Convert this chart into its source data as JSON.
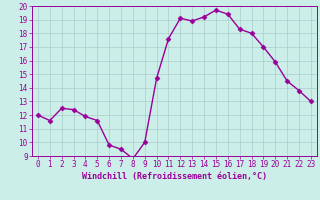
{
  "x": [
    0,
    1,
    2,
    3,
    4,
    5,
    6,
    7,
    8,
    9,
    10,
    11,
    12,
    13,
    14,
    15,
    16,
    17,
    18,
    19,
    20,
    21,
    22,
    23
  ],
  "y": [
    12.0,
    11.6,
    12.5,
    12.4,
    11.9,
    11.6,
    9.8,
    9.5,
    8.8,
    10.0,
    14.7,
    17.6,
    19.1,
    18.9,
    19.2,
    19.7,
    19.4,
    18.3,
    18.0,
    17.0,
    15.9,
    14.5,
    13.8,
    13.0
  ],
  "line_color": "#990099",
  "marker": "D",
  "marker_size": 2.5,
  "linewidth": 1.0,
  "xlabel": "Windchill (Refroidissement éolien,°C)",
  "ylim": [
    9,
    20
  ],
  "xlim": [
    -0.5,
    23.5
  ],
  "yticks": [
    9,
    10,
    11,
    12,
    13,
    14,
    15,
    16,
    17,
    18,
    19,
    20
  ],
  "xticks": [
    0,
    1,
    2,
    3,
    4,
    5,
    6,
    7,
    8,
    9,
    10,
    11,
    12,
    13,
    14,
    15,
    16,
    17,
    18,
    19,
    20,
    21,
    22,
    23
  ],
  "background_color": "#cceee8",
  "grid_color": "#aacccc",
  "line_border_color": "#880088",
  "tick_color": "#990099",
  "label_color": "#990099"
}
